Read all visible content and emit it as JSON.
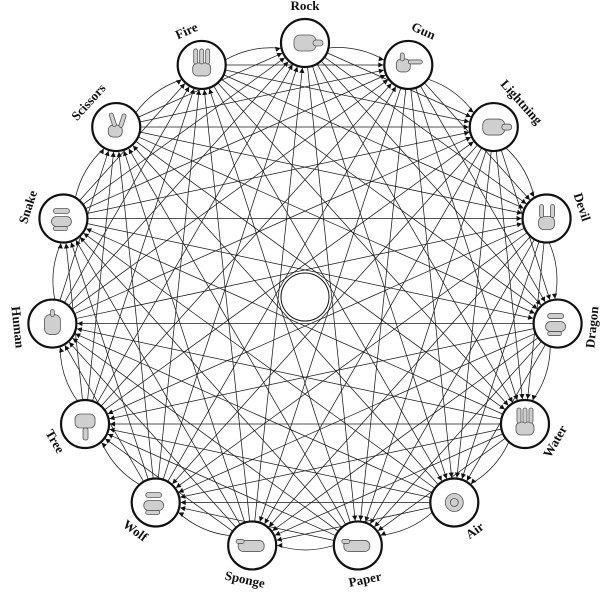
{
  "diagram": {
    "type": "tournament-graph",
    "nodes": [
      {
        "id": "rock",
        "label": "Rock",
        "icon": "rock-hand-icon"
      },
      {
        "id": "gun",
        "label": "Gun",
        "icon": "gun-hand-icon"
      },
      {
        "id": "lightning",
        "label": "Lightning",
        "icon": "lightning-hand-icon"
      },
      {
        "id": "devil",
        "label": "Devil",
        "icon": "devil-hand-icon"
      },
      {
        "id": "dragon",
        "label": "Dragon",
        "icon": "dragon-hand-icon"
      },
      {
        "id": "water",
        "label": "Water",
        "icon": "water-hand-icon"
      },
      {
        "id": "air",
        "label": "Air",
        "icon": "air-hand-icon"
      },
      {
        "id": "paper",
        "label": "Paper",
        "icon": "paper-hand-icon"
      },
      {
        "id": "sponge",
        "label": "Sponge",
        "icon": "sponge-hand-icon"
      },
      {
        "id": "wolf",
        "label": "Wolf",
        "icon": "wolf-hand-icon"
      },
      {
        "id": "tree",
        "label": "Tree",
        "icon": "tree-hand-icon"
      },
      {
        "id": "human",
        "label": "Human",
        "icon": "human-hand-icon"
      },
      {
        "id": "snake",
        "label": "Snake",
        "icon": "snake-hand-icon"
      },
      {
        "id": "scissors",
        "label": "Scissors",
        "icon": "scissors-hand-icon"
      },
      {
        "id": "fire",
        "label": "Fire",
        "icon": "fire-hand-icon"
      }
    ],
    "edge_rule": "each gesture beats the next seven gestures clockwise"
  },
  "colors": {
    "stroke": "#111111",
    "background": "#ffffff",
    "hand": "#cfcfcf"
  }
}
